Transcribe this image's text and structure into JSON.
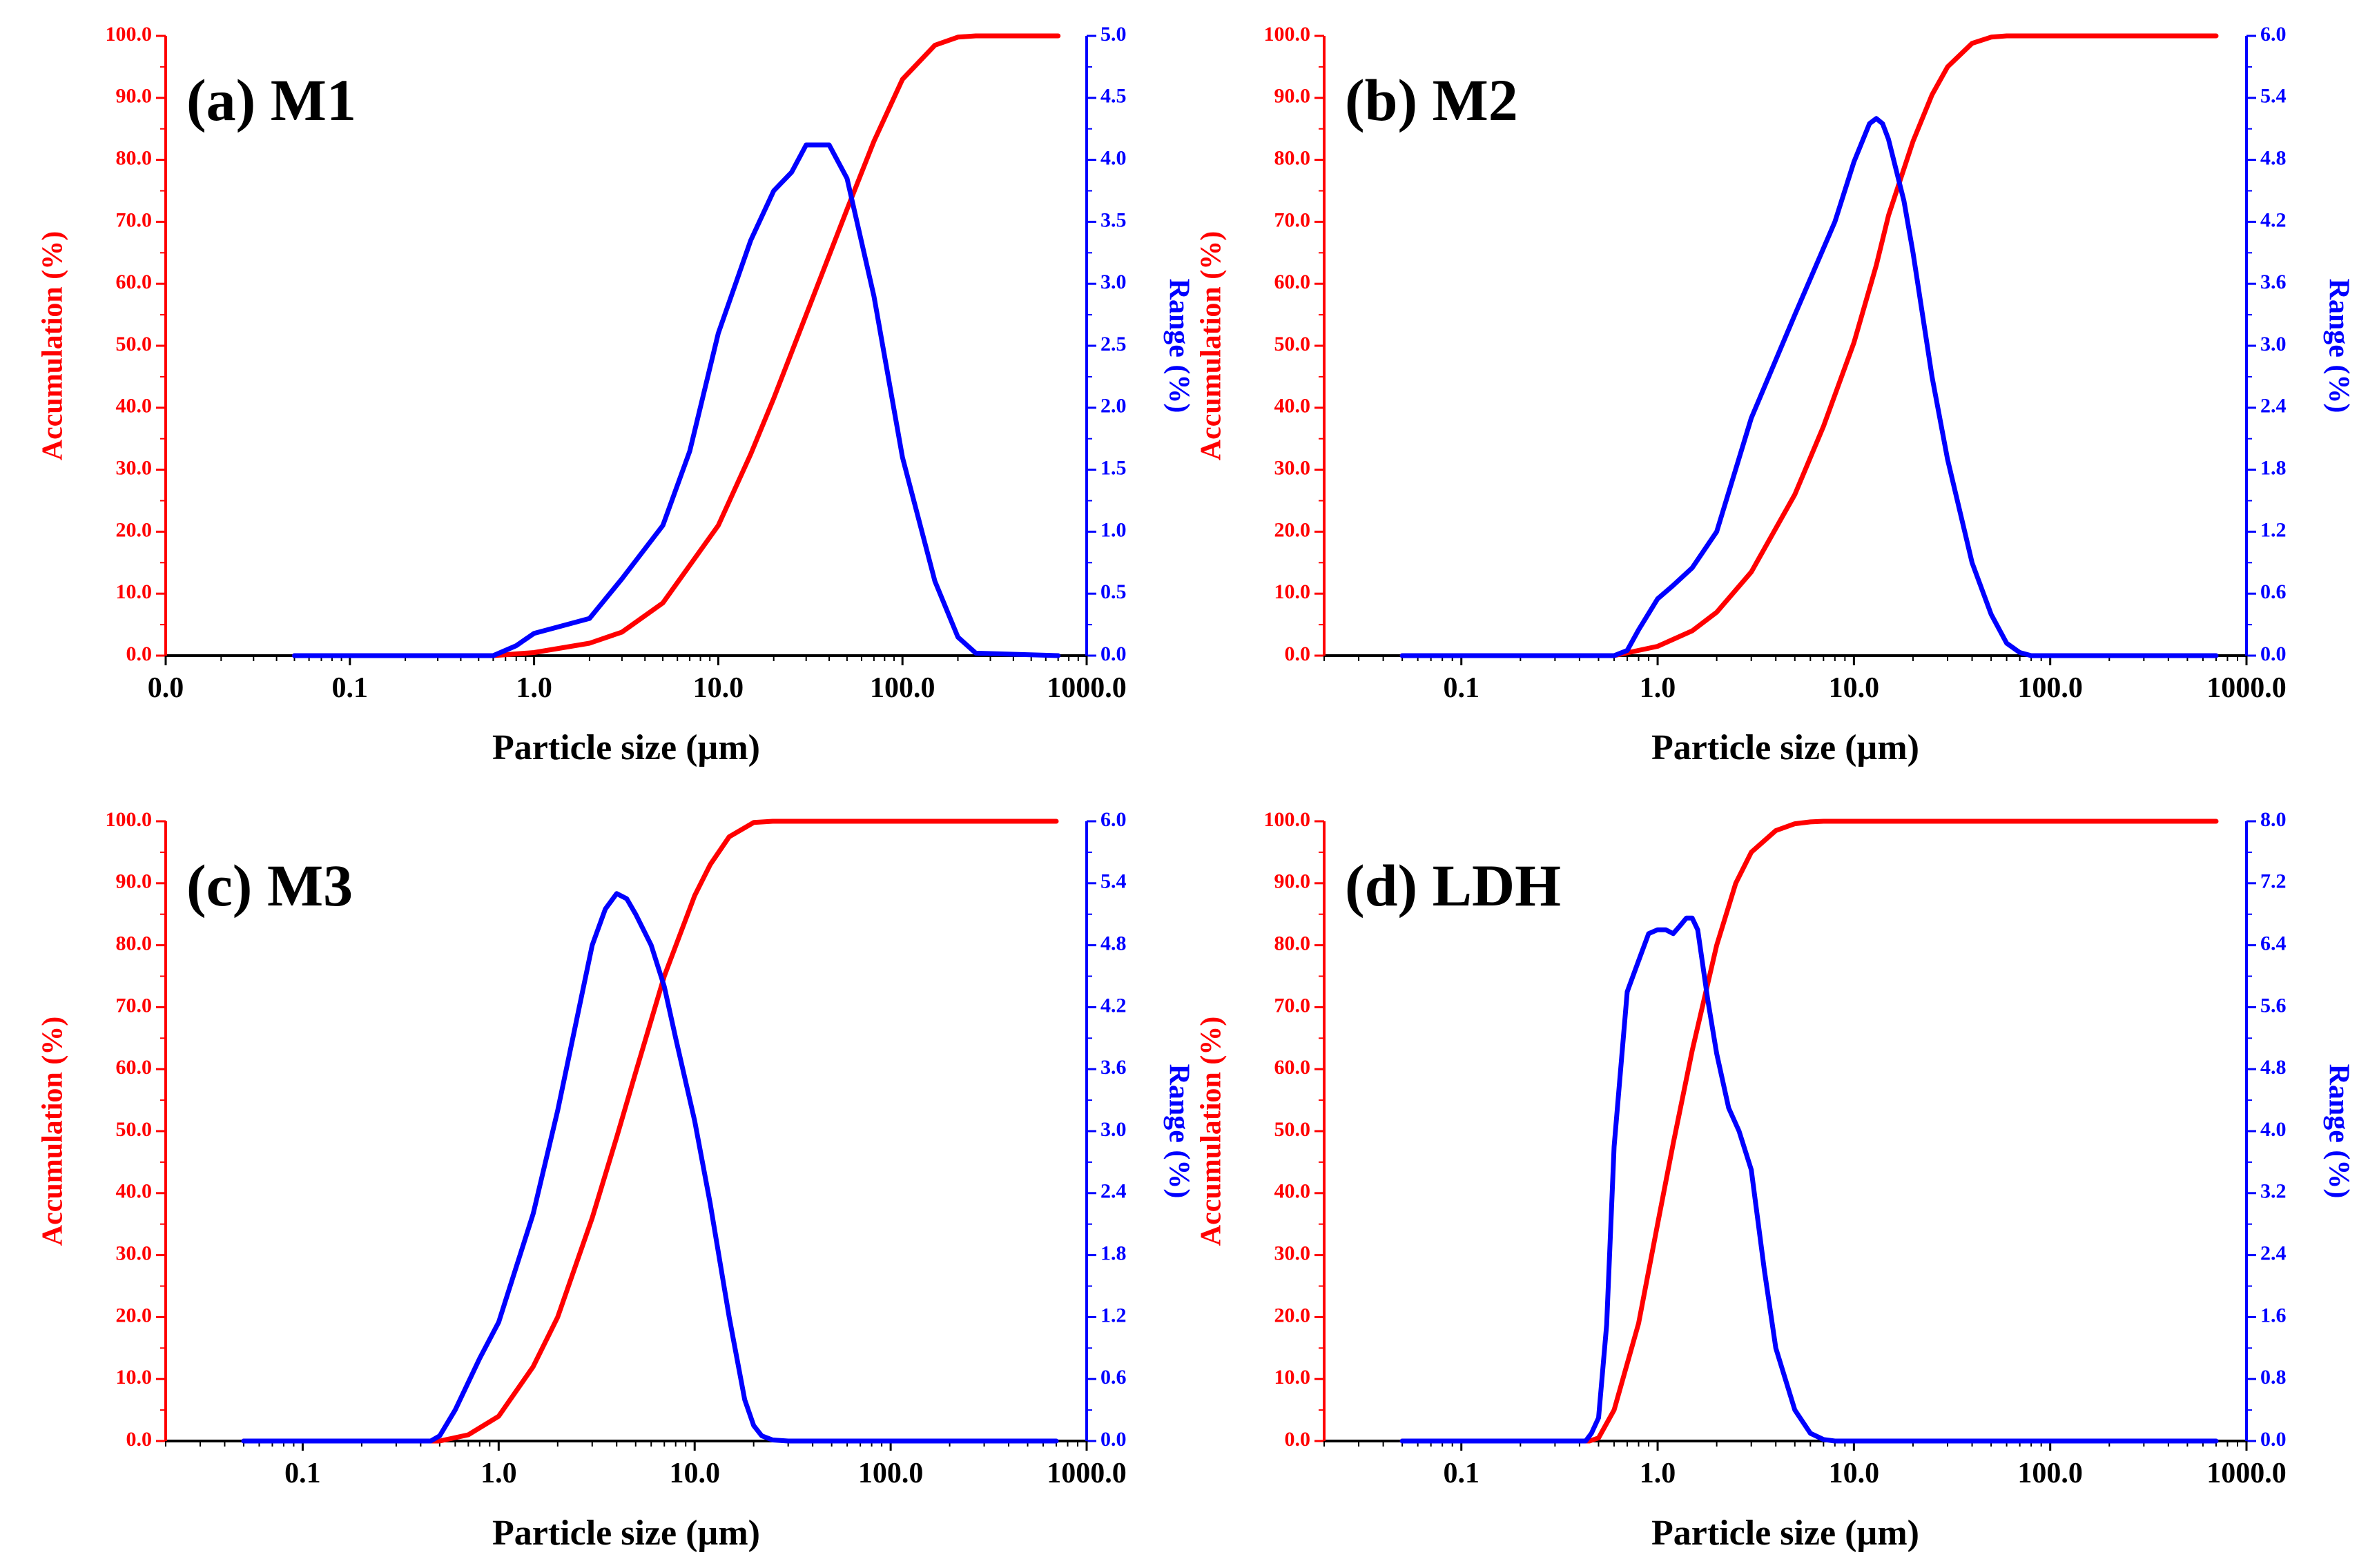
{
  "colors": {
    "accumulation": "#ff0000",
    "range": "#0000ff",
    "axis": "#000000"
  },
  "chart_data": [
    {
      "type": "line",
      "title": "(a) M1",
      "xlabel": "Particle size (µm)",
      "ylabel": "Accumulation (%)",
      "y2label": "Range (%)",
      "xscale": "log",
      "xlim": [
        0.01,
        1000
      ],
      "xticks": [
        {
          "value": 0.01,
          "label": "0.0"
        },
        {
          "value": 0.1,
          "label": "0.1"
        },
        {
          "value": 1,
          "label": "1.0"
        },
        {
          "value": 10,
          "label": "10.0"
        },
        {
          "value": 100,
          "label": "100.0"
        },
        {
          "value": 1000,
          "label": "1000.0"
        }
      ],
      "ylim": [
        0,
        100
      ],
      "yticks": [
        "0.0",
        "10.0",
        "20.0",
        "30.0",
        "40.0",
        "50.0",
        "60.0",
        "70.0",
        "80.0",
        "90.0",
        "100.0"
      ],
      "y2lim": [
        0,
        5
      ],
      "y2ticks": [
        "0.0",
        "0.5",
        "1.0",
        "1.5",
        "2.0",
        "2.5",
        "3.0",
        "3.5",
        "4.0",
        "4.5",
        "5.0"
      ],
      "series": [
        {
          "name": "Accumulation (%)",
          "axis": "left",
          "x": [
            0.05,
            0.6,
            1.0,
            2.0,
            3.0,
            5.0,
            10.0,
            15.0,
            20.0,
            30.0,
            50.0,
            70.0,
            100.0,
            150.0,
            200.0,
            250.0,
            700.0
          ],
          "y": [
            0,
            0,
            0.5,
            2.0,
            3.8,
            8.5,
            21.0,
            32.5,
            41.5,
            55.0,
            72.0,
            83.0,
            93.0,
            98.5,
            99.8,
            100,
            100
          ]
        },
        {
          "name": "Range (%)",
          "axis": "right",
          "x": [
            0.05,
            0.6,
            0.8,
            1.0,
            1.5,
            2.0,
            3.0,
            5.0,
            7.0,
            10.0,
            15.0,
            20.0,
            25.0,
            30.0,
            40.0,
            50.0,
            70.0,
            100.0,
            150.0,
            200.0,
            250.0,
            700.0
          ],
          "y": [
            0,
            0,
            0.08,
            0.18,
            0.25,
            0.3,
            0.62,
            1.05,
            1.65,
            2.6,
            3.35,
            3.75,
            3.9,
            4.12,
            4.12,
            3.85,
            2.9,
            1.6,
            0.6,
            0.15,
            0.02,
            0
          ]
        }
      ]
    },
    {
      "type": "line",
      "title": "(b) M2",
      "xlabel": "Particle size (µm)",
      "ylabel": "Accumulation (%)",
      "y2label": "Range (%)",
      "xscale": "log",
      "xlim": [
        0.02,
        1000
      ],
      "xticks": [
        {
          "value": 0.1,
          "label": "0.1"
        },
        {
          "value": 1,
          "label": "1.0"
        },
        {
          "value": 10,
          "label": "10.0"
        },
        {
          "value": 100,
          "label": "100.0"
        },
        {
          "value": 1000,
          "label": "1000.0"
        }
      ],
      "ylim": [
        0,
        100
      ],
      "yticks": [
        "0.0",
        "10.0",
        "20.0",
        "30.0",
        "40.0",
        "50.0",
        "60.0",
        "70.0",
        "80.0",
        "90.0",
        "100.0"
      ],
      "y2lim": [
        0,
        6
      ],
      "y2ticks": [
        "0.0",
        "0.6",
        "1.2",
        "1.8",
        "2.4",
        "3.0",
        "3.6",
        "4.2",
        "4.8",
        "5.4",
        "6.0"
      ],
      "series": [
        {
          "name": "Accumulation (%)",
          "axis": "left",
          "x": [
            0.05,
            0.6,
            1.0,
            1.5,
            2.0,
            3.0,
            5.0,
            7.0,
            10.0,
            13.0,
            15.0,
            20.0,
            25.0,
            30.0,
            40.0,
            50.0,
            60.0,
            700.0
          ],
          "y": [
            0,
            0,
            1.5,
            4.0,
            7.0,
            13.5,
            26.0,
            37.0,
            50.5,
            63.0,
            71.0,
            83.0,
            90.5,
            95.0,
            98.8,
            99.8,
            100,
            100
          ]
        },
        {
          "name": "Range (%)",
          "axis": "right",
          "x": [
            0.05,
            0.6,
            0.7,
            0.8,
            1.0,
            1.2,
            1.5,
            2.0,
            3.0,
            5.0,
            8.0,
            10.0,
            12.0,
            13.0,
            14.0,
            15.0,
            18.0,
            20.0,
            25.0,
            30.0,
            40.0,
            50.0,
            60.0,
            70.0,
            80.0,
            700.0
          ],
          "y": [
            0,
            0,
            0.05,
            0.25,
            0.55,
            0.68,
            0.85,
            1.2,
            2.3,
            3.3,
            4.2,
            4.78,
            5.15,
            5.2,
            5.15,
            5.0,
            4.4,
            3.9,
            2.7,
            1.9,
            0.9,
            0.4,
            0.12,
            0.03,
            0,
            0
          ]
        }
      ]
    },
    {
      "type": "line",
      "title": "(c) M3",
      "xlabel": "Particle size (µm)",
      "ylabel": "Accumulation (%)",
      "y2label": "Range (%)",
      "xscale": "log",
      "xlim": [
        0.02,
        1000
      ],
      "xticks": [
        {
          "value": 0.1,
          "label": "0.1"
        },
        {
          "value": 1,
          "label": "1.0"
        },
        {
          "value": 10,
          "label": "10.0"
        },
        {
          "value": 100,
          "label": "100.0"
        },
        {
          "value": 1000,
          "label": "1000.0"
        }
      ],
      "ylim": [
        0,
        100
      ],
      "yticks": [
        "0.0",
        "10.0",
        "20.0",
        "30.0",
        "40.0",
        "50.0",
        "60.0",
        "70.0",
        "80.0",
        "90.0",
        "100.0"
      ],
      "y2lim": [
        0,
        6
      ],
      "y2ticks": [
        "0.0",
        "0.6",
        "1.2",
        "1.8",
        "2.4",
        "3.0",
        "3.6",
        "4.2",
        "4.8",
        "5.4",
        "6.0"
      ],
      "series": [
        {
          "name": "Accumulation (%)",
          "axis": "left",
          "x": [
            0.05,
            0.5,
            0.7,
            1.0,
            1.5,
            2.0,
            3.0,
            4.0,
            5.0,
            7.0,
            10.0,
            12.0,
            15.0,
            20.0,
            25.0,
            700.0
          ],
          "y": [
            0,
            0,
            1.0,
            4.0,
            12.0,
            20.0,
            36.0,
            49.0,
            59.5,
            75.0,
            88.0,
            93.0,
            97.5,
            99.8,
            100,
            100
          ]
        },
        {
          "name": "Range (%)",
          "axis": "right",
          "x": [
            0.05,
            0.45,
            0.5,
            0.6,
            0.8,
            1.0,
            1.5,
            2.0,
            3.0,
            3.5,
            4.0,
            4.5,
            5.0,
            6.0,
            7.0,
            8.0,
            10.0,
            12.0,
            15.0,
            18.0,
            20.0,
            22.0,
            25.0,
            30.0,
            700.0
          ],
          "y": [
            0,
            0,
            0.05,
            0.3,
            0.8,
            1.15,
            2.2,
            3.2,
            4.8,
            5.15,
            5.3,
            5.25,
            5.1,
            4.8,
            4.4,
            3.9,
            3.1,
            2.3,
            1.2,
            0.4,
            0.15,
            0.05,
            0.01,
            0,
            0
          ]
        }
      ]
    },
    {
      "type": "line",
      "title": "(d) LDH",
      "xlabel": "Particle size (µm)",
      "ylabel": "Accumulation (%)",
      "y2label": "Range (%)",
      "xscale": "log",
      "xlim": [
        0.02,
        1000
      ],
      "xticks": [
        {
          "value": 0.1,
          "label": "0.1"
        },
        {
          "value": 1,
          "label": "1.0"
        },
        {
          "value": 10,
          "label": "10.0"
        },
        {
          "value": 100,
          "label": "100.0"
        },
        {
          "value": 1000,
          "label": "1000.0"
        }
      ],
      "ylim": [
        0,
        100
      ],
      "yticks": [
        "0.0",
        "10.0",
        "20.0",
        "30.0",
        "40.0",
        "50.0",
        "60.0",
        "70.0",
        "80.0",
        "90.0",
        "100.0"
      ],
      "y2lim": [
        0,
        8
      ],
      "y2ticks": [
        "0.0",
        "0.8",
        "1.6",
        "2.4",
        "3.2",
        "4.0",
        "4.8",
        "5.6",
        "6.4",
        "7.2",
        "8.0"
      ],
      "series": [
        {
          "name": "Accumulation (%)",
          "axis": "left",
          "x": [
            0.05,
            0.45,
            0.5,
            0.6,
            0.8,
            1.0,
            1.2,
            1.5,
            2.0,
            2.5,
            3.0,
            4.0,
            5.0,
            6.0,
            7.0,
            8.0,
            700.0
          ],
          "y": [
            0,
            0,
            0.5,
            5.0,
            19.0,
            35.0,
            48.0,
            63.0,
            80.0,
            90.0,
            95.0,
            98.5,
            99.6,
            99.9,
            100,
            100,
            100
          ]
        },
        {
          "name": "Range (%)",
          "axis": "right",
          "x": [
            0.05,
            0.43,
            0.46,
            0.5,
            0.55,
            0.6,
            0.7,
            0.8,
            0.9,
            1.0,
            1.1,
            1.2,
            1.3,
            1.4,
            1.5,
            1.6,
            1.8,
            2.0,
            2.3,
            2.6,
            3.0,
            3.5,
            4.0,
            5.0,
            6.0,
            7.0,
            8.0,
            700.0
          ],
          "y": [
            0,
            0,
            0.1,
            0.3,
            1.5,
            3.8,
            5.8,
            6.2,
            6.55,
            6.6,
            6.6,
            6.55,
            6.65,
            6.75,
            6.75,
            6.6,
            5.7,
            5.0,
            4.3,
            4.0,
            3.5,
            2.2,
            1.2,
            0.4,
            0.1,
            0.02,
            0,
            0
          ]
        }
      ]
    }
  ]
}
